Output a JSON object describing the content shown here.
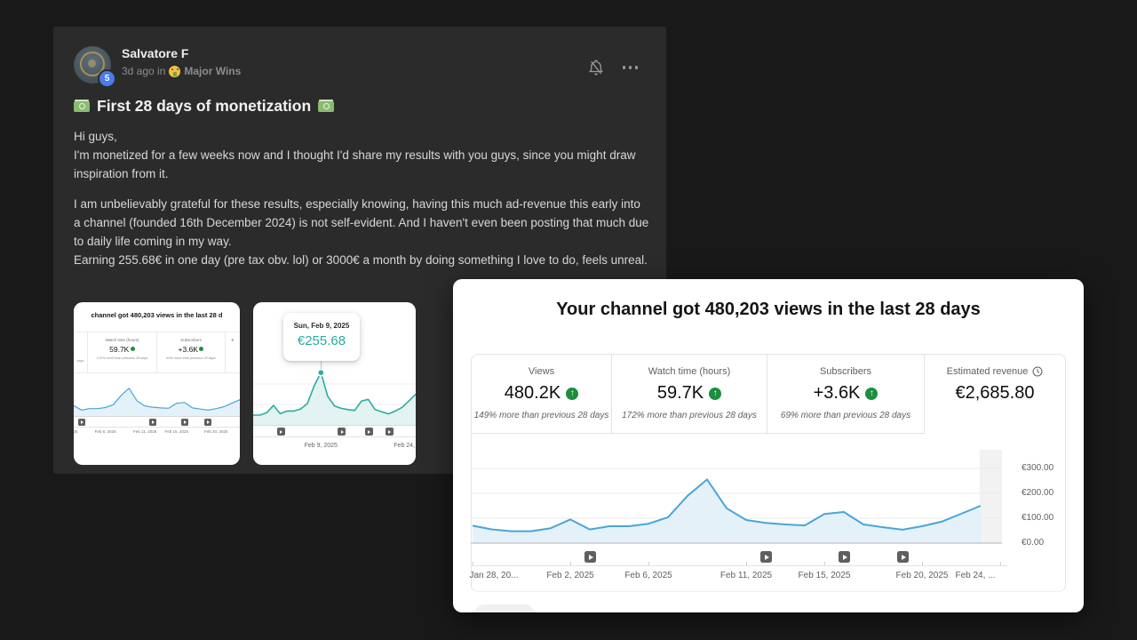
{
  "page": {
    "background": "#191919",
    "card_background": "#2b2b2b"
  },
  "post": {
    "author": "Salvatore F",
    "level_badge": "5",
    "meta_time": "3d ago in",
    "category_emoji": "🤑",
    "category": "Major Wins",
    "title_emoji": "💸",
    "title_text": "First 28 days of monetization",
    "paragraphs": {
      "p1": "Hi guys,\nI'm monetized for a few weeks now and I thought I'd share my results with you guys, since you might draw inspiration from it.",
      "p2": "I am unbelievably grateful for these results, especially knowing, having this much ad-revenue this early into a channel (founded 16th December 2024) is not self-evident. And I haven't even been posting that much due to daily life coming in my way.\nEarning 255.68€ in one day (pre tax obv. lol) or 3000€ a month by doing something I love to do, feels unreal."
    },
    "icons": {
      "bell": "notifications-off-icon",
      "more": "more-options-icon"
    }
  },
  "analytics": {
    "title": "Your channel got 480,203 views in the last 28 days",
    "metrics": [
      {
        "label": "Views",
        "value": "480.2K",
        "trend": "up",
        "sub": "149% more than previous 28 days"
      },
      {
        "label": "Watch time (hours)",
        "value": "59.7K",
        "trend": "up",
        "sub": "172% more than previous 28 days"
      },
      {
        "label": "Subscribers",
        "value": "+3.6K",
        "trend": "up",
        "sub": "69% more than previous 28 days"
      },
      {
        "label": "Estimated revenue",
        "value": "€2,685.80",
        "trend": null,
        "sub": "",
        "selected": true,
        "icon": "clock-icon"
      }
    ]
  },
  "post_attachments": {
    "image1": {
      "header_text": "channel got 480,203 views in the last 28 d",
      "left_fragment": "days",
      "right_fragment": "E",
      "cells": [
        {
          "label": "Watch time (hours)",
          "value": "59.7K",
          "sub": "172% more than previous 28 days"
        },
        {
          "label": "Subscribers",
          "value": "+3.6K",
          "sub": "69% more than previous 28 days"
        }
      ]
    },
    "image2": {
      "tooltip_date": "Sun, Feb 9, 2025",
      "tooltip_value": "€255.68"
    }
  },
  "chart_data": [
    {
      "type": "area",
      "context": "YouTube Studio — estimated daily ad revenue over last 28 days",
      "title": "Your channel got 480,203 views in the last 28 days",
      "currency": "EUR",
      "dates": [
        "Jan 28",
        "Jan 29",
        "Jan 30",
        "Jan 31",
        "Feb 1",
        "Feb 2",
        "Feb 3",
        "Feb 4",
        "Feb 5",
        "Feb 6",
        "Feb 7",
        "Feb 8",
        "Feb 9",
        "Feb 10",
        "Feb 11",
        "Feb 12",
        "Feb 13",
        "Feb 14",
        "Feb 15",
        "Feb 16",
        "Feb 17",
        "Feb 18",
        "Feb 19",
        "Feb 20",
        "Feb 21",
        "Feb 22",
        "Feb 23"
      ],
      "values": [
        70,
        55,
        48,
        48,
        60,
        95,
        55,
        68,
        68,
        78,
        104,
        190,
        255.68,
        140,
        93,
        81,
        75,
        71,
        117,
        125,
        75,
        64,
        54,
        68,
        86,
        118,
        150
      ],
      "peak": {
        "date": "Sun, Feb 9, 2025",
        "value": 255.68
      },
      "y_axis": {
        "side": "right",
        "ylim": [
          0,
          320
        ],
        "ticks": [
          {
            "label": "€300.00",
            "value": 300
          },
          {
            "label": "€200.00",
            "value": 200
          },
          {
            "label": "€100.00",
            "value": 100
          },
          {
            "label": "€0.00",
            "value": 0
          }
        ]
      },
      "x_axis": {
        "ticks": [
          {
            "label": "Jan 28, 20...",
            "day_index": 0
          },
          {
            "label": "Feb 2, 2025",
            "day_index": 5
          },
          {
            "label": "Feb 6, 2025",
            "day_index": 9
          },
          {
            "label": "Feb 11, 2025",
            "day_index": 14
          },
          {
            "label": "Feb 15, 2025",
            "day_index": 18
          },
          {
            "label": "Feb 20, 2025",
            "day_index": 23
          },
          {
            "label": "Feb 24, ...",
            "day_index": 27
          }
        ]
      },
      "video_marker_day_indices": [
        6,
        15,
        19,
        22
      ],
      "line_color": "#4aa5d8",
      "fill_color": "#e4f1f9",
      "grid": true,
      "incomplete_last_day_shaded": true
    },
    {
      "type": "area",
      "variant": "post-thumbnail-1-mini-view",
      "uses_values_from_chart": 0,
      "subset_day_range": [
        5,
        26
      ],
      "line_color": "#4aa5d8",
      "fill_color": "#e4f1f9",
      "date_ticks": [
        {
          "label": "25",
          "day_index": 5
        },
        {
          "label": "Feb 6, 2025",
          "day_index": 9
        },
        {
          "label": "Feb 11, 2025",
          "day_index": 14
        },
        {
          "label": "Feb 15, 2025",
          "day_index": 18
        },
        {
          "label": "Feb 20, 2025",
          "day_index": 23
        }
      ]
    },
    {
      "type": "area",
      "variant": "post-thumbnail-2-zoomed-revenue",
      "uses_values_from_chart": 0,
      "subset_day_range": [
        2,
        26
      ],
      "tooltip": {
        "date": "Sun, Feb 9, 2025",
        "value": "€255.68"
      },
      "peak_day_index": 12,
      "line_color": "#2bab9f",
      "fill_color": "#e2f3f1",
      "date_ticks": [
        {
          "label": "Feb 9, 2025",
          "day_index": 12
        },
        {
          "label": "Feb 24, 2...",
          "day_index": 27
        }
      ]
    }
  ]
}
